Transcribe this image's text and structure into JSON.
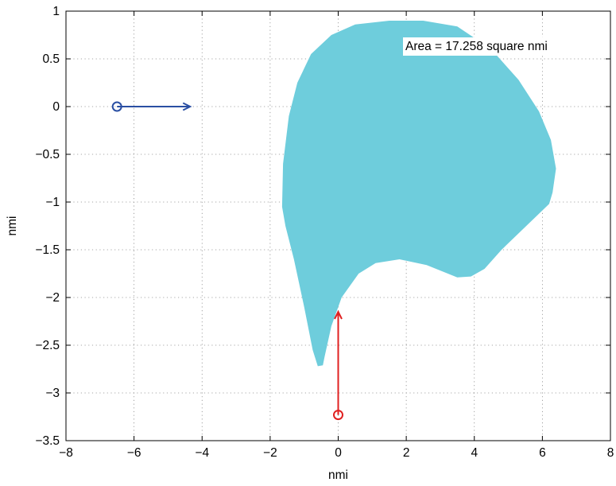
{
  "chart_data": {
    "type": "area",
    "title": "",
    "xlabel": "nmi",
    "ylabel": "nmi",
    "xlim": [
      -8,
      8
    ],
    "ylim": [
      -3.5,
      1
    ],
    "xticks": [
      -8,
      -6,
      -4,
      -2,
      0,
      2,
      4,
      6,
      8
    ],
    "yticks": [
      -3.5,
      -3,
      -2.5,
      -2,
      -1.5,
      -1,
      -0.5,
      0,
      0.5,
      1
    ],
    "xtick_labels": [
      "−8",
      "−6",
      "−4",
      "−2",
      "0",
      "2",
      "4",
      "6",
      "8"
    ],
    "ytick_labels": [
      "−3.5",
      "−3",
      "−2.5",
      "−2",
      "−1.5",
      "−1",
      "−0.5",
      "0",
      "0.5",
      "1"
    ],
    "grid": true,
    "region": {
      "color": "#6ecddc",
      "boundary": [
        [
          -1.65,
          -1.05
        ],
        [
          -1.62,
          -0.6
        ],
        [
          -1.45,
          -0.1
        ],
        [
          -1.2,
          0.25
        ],
        [
          -0.8,
          0.55
        ],
        [
          -0.2,
          0.75
        ],
        [
          0.5,
          0.86
        ],
        [
          1.5,
          0.9
        ],
        [
          2.5,
          0.9
        ],
        [
          3.5,
          0.84
        ],
        [
          4.5,
          0.6
        ],
        [
          5.3,
          0.28
        ],
        [
          5.9,
          -0.05
        ],
        [
          6.25,
          -0.35
        ],
        [
          6.4,
          -0.65
        ],
        [
          6.3,
          -0.9
        ],
        [
          6.2,
          -1.02
        ],
        [
          4.8,
          -1.5
        ],
        [
          4.3,
          -1.7
        ],
        [
          3.9,
          -1.78
        ],
        [
          3.5,
          -1.79
        ],
        [
          2.6,
          -1.66
        ],
        [
          1.8,
          -1.6
        ],
        [
          1.1,
          -1.64
        ],
        [
          0.6,
          -1.75
        ],
        [
          0.1,
          -2.0
        ],
        [
          -0.2,
          -2.3
        ],
        [
          -0.4,
          -2.62
        ],
        [
          -0.45,
          -2.71
        ],
        [
          -0.6,
          -2.72
        ],
        [
          -0.75,
          -2.55
        ],
        [
          -1.0,
          -2.1
        ],
        [
          -1.3,
          -1.6
        ],
        [
          -1.55,
          -1.25
        ]
      ]
    },
    "annotation": "Area = 17.258 square nmi",
    "series": [
      {
        "marker": "circle",
        "color": "#2a4fa3",
        "start": [
          -6.5,
          0
        ],
        "end": [
          -4.35,
          0
        ]
      },
      {
        "marker": "circle",
        "color": "#e02020",
        "start": [
          0,
          -3.23
        ],
        "end": [
          0,
          -2.15
        ]
      }
    ]
  }
}
